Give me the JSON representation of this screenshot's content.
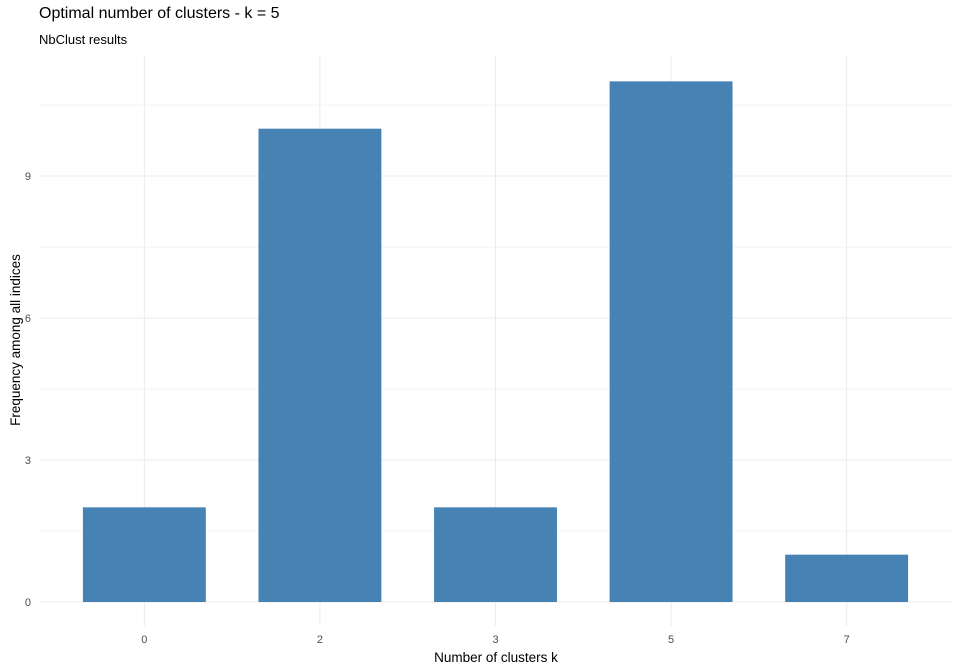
{
  "chart_data": {
    "type": "bar",
    "title": "Optimal number of clusters - k = 5",
    "subtitle": "NbClust results",
    "xlabel": "Number of clusters k",
    "ylabel": "Frequency among all indices",
    "categories": [
      "0",
      "2",
      "3",
      "5",
      "7"
    ],
    "values": [
      2,
      10,
      2,
      11,
      1
    ],
    "ylim": [
      0,
      11.55
    ],
    "yticks": [
      0,
      3,
      6,
      9
    ],
    "grid": true,
    "legend": "none",
    "bar_color": "#4682B4",
    "grid_color": "#EBEBEB"
  }
}
